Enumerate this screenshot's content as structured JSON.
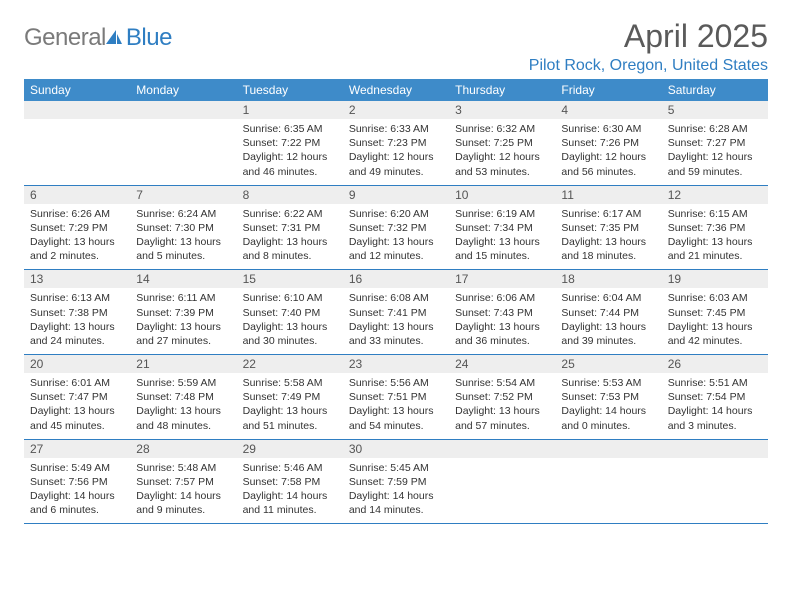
{
  "logo": {
    "text_general": "General",
    "text_blue": "Blue"
  },
  "title": "April 2025",
  "location": "Pilot Rock, Oregon, United States",
  "colors": {
    "header_bg": "#3e8bc9",
    "accent": "#2f7ec2",
    "daynum_bg": "#eeeeee",
    "text_gray": "#5a5a5a",
    "text_dark": "#333333"
  },
  "day_names": [
    "Sunday",
    "Monday",
    "Tuesday",
    "Wednesday",
    "Thursday",
    "Friday",
    "Saturday"
  ],
  "weeks": [
    [
      {
        "num": "",
        "sunrise": "",
        "sunset": "",
        "daylight": ""
      },
      {
        "num": "",
        "sunrise": "",
        "sunset": "",
        "daylight": ""
      },
      {
        "num": "1",
        "sunrise": "Sunrise: 6:35 AM",
        "sunset": "Sunset: 7:22 PM",
        "daylight": "Daylight: 12 hours and 46 minutes."
      },
      {
        "num": "2",
        "sunrise": "Sunrise: 6:33 AM",
        "sunset": "Sunset: 7:23 PM",
        "daylight": "Daylight: 12 hours and 49 minutes."
      },
      {
        "num": "3",
        "sunrise": "Sunrise: 6:32 AM",
        "sunset": "Sunset: 7:25 PM",
        "daylight": "Daylight: 12 hours and 53 minutes."
      },
      {
        "num": "4",
        "sunrise": "Sunrise: 6:30 AM",
        "sunset": "Sunset: 7:26 PM",
        "daylight": "Daylight: 12 hours and 56 minutes."
      },
      {
        "num": "5",
        "sunrise": "Sunrise: 6:28 AM",
        "sunset": "Sunset: 7:27 PM",
        "daylight": "Daylight: 12 hours and 59 minutes."
      }
    ],
    [
      {
        "num": "6",
        "sunrise": "Sunrise: 6:26 AM",
        "sunset": "Sunset: 7:29 PM",
        "daylight": "Daylight: 13 hours and 2 minutes."
      },
      {
        "num": "7",
        "sunrise": "Sunrise: 6:24 AM",
        "sunset": "Sunset: 7:30 PM",
        "daylight": "Daylight: 13 hours and 5 minutes."
      },
      {
        "num": "8",
        "sunrise": "Sunrise: 6:22 AM",
        "sunset": "Sunset: 7:31 PM",
        "daylight": "Daylight: 13 hours and 8 minutes."
      },
      {
        "num": "9",
        "sunrise": "Sunrise: 6:20 AM",
        "sunset": "Sunset: 7:32 PM",
        "daylight": "Daylight: 13 hours and 12 minutes."
      },
      {
        "num": "10",
        "sunrise": "Sunrise: 6:19 AM",
        "sunset": "Sunset: 7:34 PM",
        "daylight": "Daylight: 13 hours and 15 minutes."
      },
      {
        "num": "11",
        "sunrise": "Sunrise: 6:17 AM",
        "sunset": "Sunset: 7:35 PM",
        "daylight": "Daylight: 13 hours and 18 minutes."
      },
      {
        "num": "12",
        "sunrise": "Sunrise: 6:15 AM",
        "sunset": "Sunset: 7:36 PM",
        "daylight": "Daylight: 13 hours and 21 minutes."
      }
    ],
    [
      {
        "num": "13",
        "sunrise": "Sunrise: 6:13 AM",
        "sunset": "Sunset: 7:38 PM",
        "daylight": "Daylight: 13 hours and 24 minutes."
      },
      {
        "num": "14",
        "sunrise": "Sunrise: 6:11 AM",
        "sunset": "Sunset: 7:39 PM",
        "daylight": "Daylight: 13 hours and 27 minutes."
      },
      {
        "num": "15",
        "sunrise": "Sunrise: 6:10 AM",
        "sunset": "Sunset: 7:40 PM",
        "daylight": "Daylight: 13 hours and 30 minutes."
      },
      {
        "num": "16",
        "sunrise": "Sunrise: 6:08 AM",
        "sunset": "Sunset: 7:41 PM",
        "daylight": "Daylight: 13 hours and 33 minutes."
      },
      {
        "num": "17",
        "sunrise": "Sunrise: 6:06 AM",
        "sunset": "Sunset: 7:43 PM",
        "daylight": "Daylight: 13 hours and 36 minutes."
      },
      {
        "num": "18",
        "sunrise": "Sunrise: 6:04 AM",
        "sunset": "Sunset: 7:44 PM",
        "daylight": "Daylight: 13 hours and 39 minutes."
      },
      {
        "num": "19",
        "sunrise": "Sunrise: 6:03 AM",
        "sunset": "Sunset: 7:45 PM",
        "daylight": "Daylight: 13 hours and 42 minutes."
      }
    ],
    [
      {
        "num": "20",
        "sunrise": "Sunrise: 6:01 AM",
        "sunset": "Sunset: 7:47 PM",
        "daylight": "Daylight: 13 hours and 45 minutes."
      },
      {
        "num": "21",
        "sunrise": "Sunrise: 5:59 AM",
        "sunset": "Sunset: 7:48 PM",
        "daylight": "Daylight: 13 hours and 48 minutes."
      },
      {
        "num": "22",
        "sunrise": "Sunrise: 5:58 AM",
        "sunset": "Sunset: 7:49 PM",
        "daylight": "Daylight: 13 hours and 51 minutes."
      },
      {
        "num": "23",
        "sunrise": "Sunrise: 5:56 AM",
        "sunset": "Sunset: 7:51 PM",
        "daylight": "Daylight: 13 hours and 54 minutes."
      },
      {
        "num": "24",
        "sunrise": "Sunrise: 5:54 AM",
        "sunset": "Sunset: 7:52 PM",
        "daylight": "Daylight: 13 hours and 57 minutes."
      },
      {
        "num": "25",
        "sunrise": "Sunrise: 5:53 AM",
        "sunset": "Sunset: 7:53 PM",
        "daylight": "Daylight: 14 hours and 0 minutes."
      },
      {
        "num": "26",
        "sunrise": "Sunrise: 5:51 AM",
        "sunset": "Sunset: 7:54 PM",
        "daylight": "Daylight: 14 hours and 3 minutes."
      }
    ],
    [
      {
        "num": "27",
        "sunrise": "Sunrise: 5:49 AM",
        "sunset": "Sunset: 7:56 PM",
        "daylight": "Daylight: 14 hours and 6 minutes."
      },
      {
        "num": "28",
        "sunrise": "Sunrise: 5:48 AM",
        "sunset": "Sunset: 7:57 PM",
        "daylight": "Daylight: 14 hours and 9 minutes."
      },
      {
        "num": "29",
        "sunrise": "Sunrise: 5:46 AM",
        "sunset": "Sunset: 7:58 PM",
        "daylight": "Daylight: 14 hours and 11 minutes."
      },
      {
        "num": "30",
        "sunrise": "Sunrise: 5:45 AM",
        "sunset": "Sunset: 7:59 PM",
        "daylight": "Daylight: 14 hours and 14 minutes."
      },
      {
        "num": "",
        "sunrise": "",
        "sunset": "",
        "daylight": ""
      },
      {
        "num": "",
        "sunrise": "",
        "sunset": "",
        "daylight": ""
      },
      {
        "num": "",
        "sunrise": "",
        "sunset": "",
        "daylight": ""
      }
    ]
  ]
}
